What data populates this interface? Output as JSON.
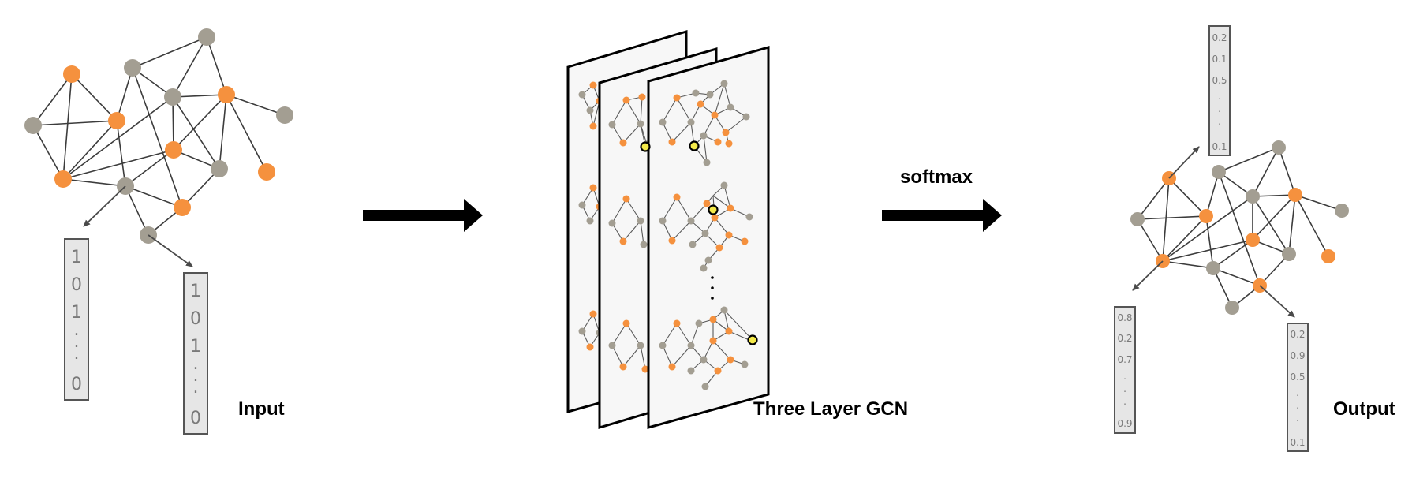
{
  "labels": {
    "input": "Input",
    "gcn": "Three Layer GCN",
    "softmax": "softmax",
    "output": "Output"
  },
  "input_vectors": [
    [
      "1",
      "0",
      "1",
      ".",
      ".",
      ".",
      "0"
    ],
    [
      "1",
      "0",
      "1",
      ".",
      ".",
      ".",
      "0"
    ]
  ],
  "output_vectors": {
    "top": [
      "0.2",
      "0.1",
      "0.5",
      ".",
      ".",
      ".",
      "0.1"
    ],
    "left": [
      "0.8",
      "0.2",
      "0.7",
      ".",
      ".",
      ".",
      "0.9"
    ],
    "right": [
      "0.2",
      "0.9",
      "0.5",
      ".",
      ".",
      ".",
      "0.1"
    ]
  },
  "colors": {
    "orange_node": "#f5913e",
    "gray_node": "#a39e92",
    "highlight_node": "#f4ea4a",
    "arrow": "#000000"
  }
}
